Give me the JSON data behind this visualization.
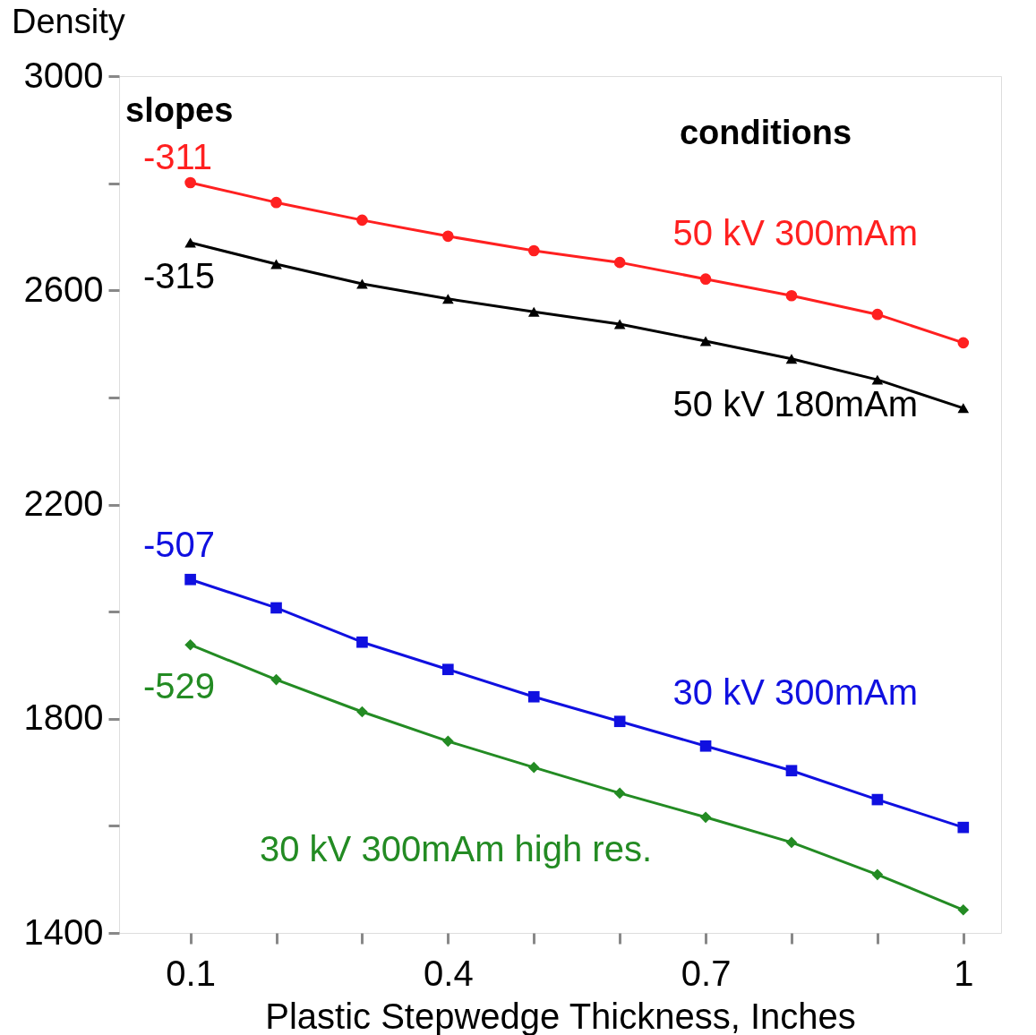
{
  "chart_data": {
    "type": "line",
    "ylabel": "Density",
    "xlabel": "Plastic Stepwedge Thickness, Inches",
    "x": [
      0.1,
      0.2,
      0.3,
      0.4,
      0.5,
      0.6,
      0.7,
      0.8,
      0.9,
      1.0
    ],
    "series": [
      {
        "name": "50 kV  300mAm",
        "color": "#ff2020",
        "marker": "circle",
        "values": [
          2801,
          2764,
          2731,
          2701,
          2674,
          2652,
          2621,
          2590,
          2555,
          2502
        ]
      },
      {
        "name": "50 kV  180mAm",
        "color": "#000000",
        "marker": "triangle",
        "values": [
          2689,
          2649,
          2612,
          2584,
          2560,
          2537,
          2505,
          2472,
          2433,
          2380
        ]
      },
      {
        "name": "30 kV  300mAm",
        "color": "#1010e0",
        "marker": "square",
        "values": [
          2060,
          2007,
          1943,
          1892,
          1841,
          1795,
          1749,
          1703,
          1649,
          1597
        ]
      },
      {
        "name": "30 kV  300mAm high res.",
        "color": "#238b23",
        "marker": "diamond",
        "values": [
          1938,
          1873,
          1813,
          1758,
          1709,
          1661,
          1616,
          1569,
          1509,
          1443
        ]
      }
    ],
    "annotations": [
      "slopes",
      "conditions",
      "-311",
      "-315",
      "-507",
      "-529"
    ],
    "xlim": [
      0.017,
      1.044
    ],
    "ylim": [
      1400,
      3000
    ],
    "xticks": [
      0.1,
      {
        "value": 0.2,
        "label": null
      },
      {
        "value": 0.3,
        "label": null
      },
      0.4,
      {
        "value": 0.5,
        "label": null
      },
      {
        "value": 0.6,
        "label": null
      },
      0.7,
      {
        "value": 0.8,
        "label": null
      },
      {
        "value": 0.9,
        "label": null
      },
      1
    ],
    "yticks": [
      1400,
      {
        "value": 1600,
        "label": null
      },
      1800,
      {
        "value": 2000,
        "label": null
      },
      2200,
      {
        "value": 2400,
        "label": null
      },
      2600,
      {
        "value": 2800,
        "label": null
      },
      3000
    ],
    "grid": false,
    "line_style": "solid"
  }
}
